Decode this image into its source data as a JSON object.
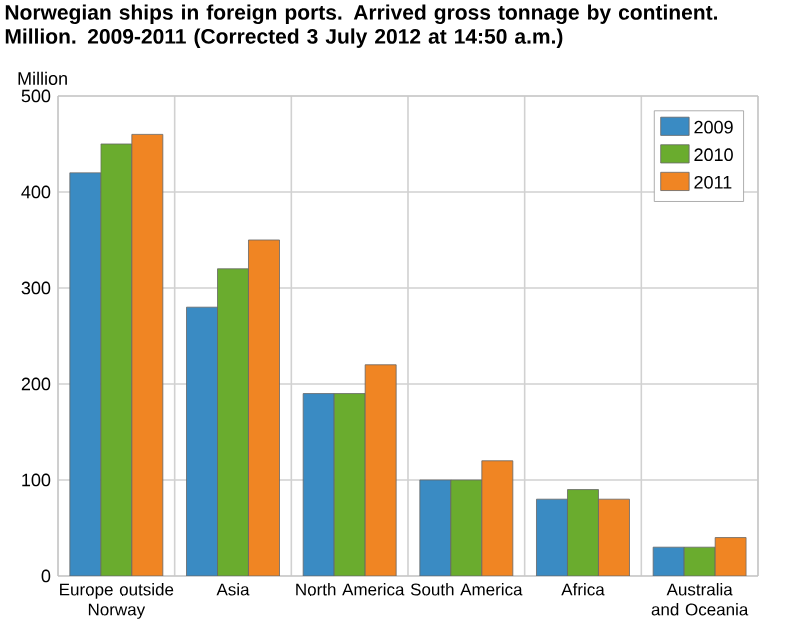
{
  "chart_data": {
    "type": "bar",
    "title": "Norwegian ships in foreign ports. Arrived gross tonnage by continent. Million. 2009-2011 (Corrected 3 July 2012 at 14:50 a.m.)",
    "ylabel": "Million",
    "categories": [
      "Europe outside Norway",
      "Asia",
      "North America",
      "South America",
      "Africa",
      "Australia and Oceania"
    ],
    "series": [
      {
        "name": "2009",
        "color": "#3a8bc3",
        "values": [
          420,
          280,
          190,
          100,
          80,
          30
        ]
      },
      {
        "name": "2010",
        "color": "#6aac2e",
        "values": [
          450,
          320,
          190,
          100,
          90,
          30
        ]
      },
      {
        "name": "2011",
        "color": "#f08523",
        "values": [
          460,
          350,
          220,
          120,
          80,
          40
        ]
      }
    ],
    "ylim": [
      0,
      500
    ],
    "yticks": [
      0,
      100,
      200,
      300,
      400,
      500
    ],
    "grid": true,
    "legend": "top right"
  }
}
